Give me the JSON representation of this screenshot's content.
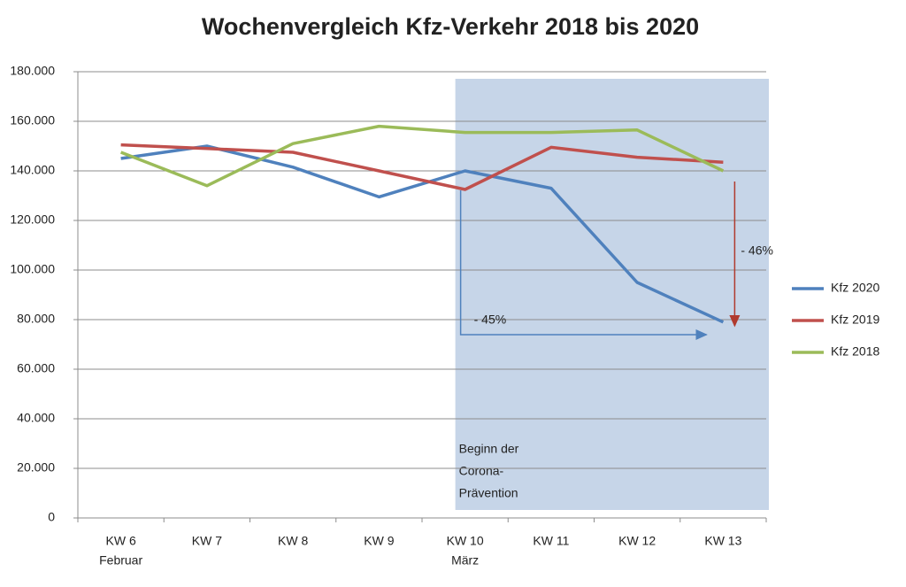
{
  "chart_data": {
    "type": "line",
    "title": "Wochenvergleich Kfz-Verkehr 2018 bis 2020",
    "categories": [
      "KW 6",
      "KW 7",
      "KW 8",
      "KW 9",
      "KW 10",
      "KW 11",
      "KW 12",
      "KW 13"
    ],
    "category_sublabels": [
      "Februar",
      null,
      null,
      null,
      "März",
      null,
      null,
      null
    ],
    "series": [
      {
        "name": "Kfz 2020",
        "color": "#4f81bd",
        "values": [
          145000,
          150000,
          141500,
          129500,
          140000,
          133000,
          95000,
          79000
        ]
      },
      {
        "name": "Kfz 2019",
        "color": "#c0504d",
        "values": [
          150500,
          149000,
          147500,
          140000,
          132500,
          149500,
          145500,
          143500
        ]
      },
      {
        "name": "Kfz 2018",
        "color": "#9bbb59",
        "values": [
          147500,
          134000,
          151000,
          158000,
          155500,
          155500,
          156500,
          140000
        ]
      }
    ],
    "ylim": [
      0,
      180000
    ],
    "yticks": [
      0,
      {
        "value": 20000,
        "label": "20.000"
      },
      {
        "value": 40000,
        "label": "40.000"
      },
      {
        "value": 60000,
        "label": "60.000"
      },
      {
        "value": 80000,
        "label": "80.000"
      },
      {
        "value": 100000,
        "label": "100.000"
      },
      {
        "value": 120000,
        "label": "120.000"
      },
      {
        "value": 140000,
        "label": "140.000"
      },
      {
        "value": 160000,
        "label": "160.000"
      },
      {
        "value": 180000,
        "label": "180.000"
      }
    ],
    "grid": true,
    "legend": "right",
    "region_label": [
      "Beginn der",
      "Corona-",
      "Prävention"
    ],
    "annotations": [
      "- 45%",
      "- 46%"
    ]
  }
}
